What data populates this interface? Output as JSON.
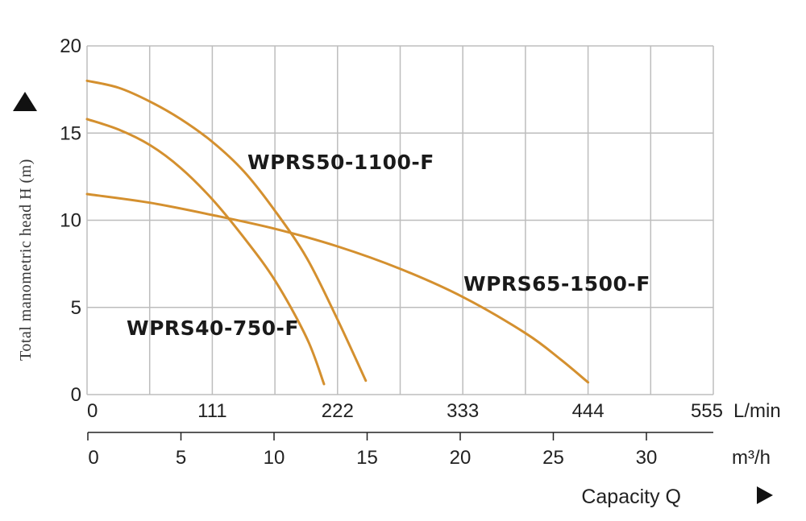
{
  "chart_data": {
    "type": "line",
    "ylabel": "Total manometric head H (m)",
    "xlabel": "Capacity Q",
    "x_units": [
      "L/min",
      "m³/h"
    ],
    "x_ticks_lmin": [
      "0",
      "111",
      "222",
      "333",
      "444",
      "555"
    ],
    "x_ticks_m3h": [
      "0",
      "5",
      "10",
      "15",
      "20",
      "25",
      "30"
    ],
    "y_ticks": [
      "0",
      "5",
      "10",
      "15",
      "20"
    ],
    "xlim": [
      0,
      555
    ],
    "ylim": [
      0,
      20
    ],
    "grid": true,
    "series": [
      {
        "name": "WPRS40-750-F",
        "color": "#D4902F",
        "x": [
          0,
          28,
          56,
          83,
          111,
          139,
          167,
          195,
          210
        ],
        "y": [
          15.8,
          15.2,
          14.3,
          13.0,
          11.2,
          9.0,
          6.5,
          3.2,
          0.6
        ]
      },
      {
        "name": "WPRS50-1100-F",
        "color": "#D4902F",
        "x": [
          0,
          28,
          56,
          83,
          111,
          139,
          167,
          195,
          222,
          247
        ],
        "y": [
          18.0,
          17.6,
          16.8,
          15.8,
          14.5,
          12.8,
          10.5,
          7.8,
          4.3,
          0.8
        ]
      },
      {
        "name": "WPRS65-1500-F",
        "color": "#D4902F",
        "x": [
          0,
          56,
          111,
          167,
          222,
          278,
          333,
          389,
          420,
          444
        ],
        "y": [
          11.5,
          11.0,
          10.3,
          9.5,
          8.5,
          7.2,
          5.6,
          3.5,
          2.0,
          0.7
        ]
      }
    ]
  }
}
